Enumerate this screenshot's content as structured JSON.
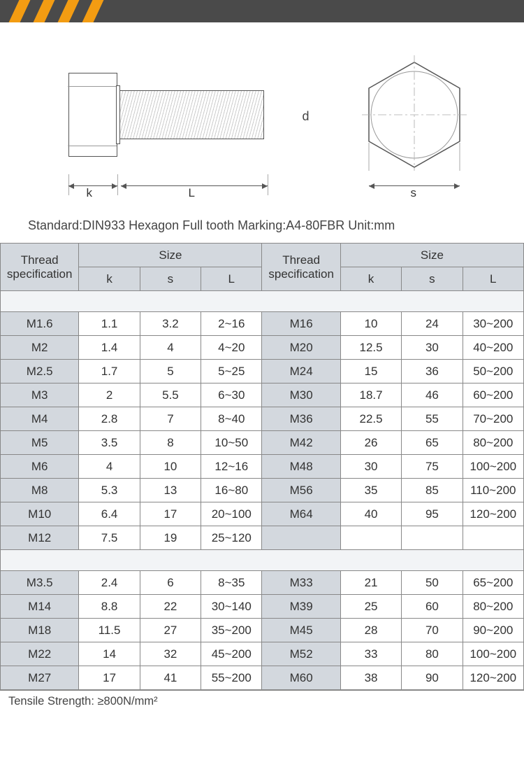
{
  "colors": {
    "topbar": "#4a4a4a",
    "stripe": "#f39c12",
    "header_bg": "#d3d8de",
    "gap_bg": "#f2f4f6",
    "border": "#888888",
    "text": "#333333"
  },
  "diagram": {
    "labels": {
      "d": "d",
      "k": "k",
      "L": "L",
      "s": "s"
    }
  },
  "standard_line": "Standard:DIN933  Hexagon Full tooth   Marking:A4-80FBR   Unit:mm",
  "table": {
    "headers": {
      "thread_spec": "Thread specification",
      "size": "Size",
      "k": "k",
      "s": "s",
      "L": "L"
    },
    "block1": [
      {
        "l_spec": "M1.6",
        "l_k": "1.1",
        "l_s": "3.2",
        "l_L": "2~16",
        "r_spec": "M16",
        "r_k": "10",
        "r_s": "24",
        "r_L": "30~200"
      },
      {
        "l_spec": "M2",
        "l_k": "1.4",
        "l_s": "4",
        "l_L": "4~20",
        "r_spec": "M20",
        "r_k": "12.5",
        "r_s": "30",
        "r_L": "40~200"
      },
      {
        "l_spec": "M2.5",
        "l_k": "1.7",
        "l_s": "5",
        "l_L": "5~25",
        "r_spec": "M24",
        "r_k": "15",
        "r_s": "36",
        "r_L": "50~200"
      },
      {
        "l_spec": "M3",
        "l_k": "2",
        "l_s": "5.5",
        "l_L": "6~30",
        "r_spec": "M30",
        "r_k": "18.7",
        "r_s": "46",
        "r_L": "60~200"
      },
      {
        "l_spec": "M4",
        "l_k": "2.8",
        "l_s": "7",
        "l_L": "8~40",
        "r_spec": "M36",
        "r_k": "22.5",
        "r_s": "55",
        "r_L": "70~200"
      },
      {
        "l_spec": "M5",
        "l_k": "3.5",
        "l_s": "8",
        "l_L": "10~50",
        "r_spec": "M42",
        "r_k": "26",
        "r_s": "65",
        "r_L": "80~200"
      },
      {
        "l_spec": "M6",
        "l_k": "4",
        "l_s": "10",
        "l_L": "12~16",
        "r_spec": "M48",
        "r_k": "30",
        "r_s": "75",
        "r_L": "100~200"
      },
      {
        "l_spec": "M8",
        "l_k": "5.3",
        "l_s": "13",
        "l_L": "16~80",
        "r_spec": "M56",
        "r_k": "35",
        "r_s": "85",
        "r_L": "110~200"
      },
      {
        "l_spec": "M10",
        "l_k": "6.4",
        "l_s": "17",
        "l_L": "20~100",
        "r_spec": "M64",
        "r_k": "40",
        "r_s": "95",
        "r_L": "120~200"
      },
      {
        "l_spec": "M12",
        "l_k": "7.5",
        "l_s": "19",
        "l_L": "25~120",
        "r_spec": "",
        "r_k": "",
        "r_s": "",
        "r_L": ""
      }
    ],
    "block2": [
      {
        "l_spec": "M3.5",
        "l_k": "2.4",
        "l_s": "6",
        "l_L": "8~35",
        "r_spec": "M33",
        "r_k": "21",
        "r_s": "50",
        "r_L": "65~200"
      },
      {
        "l_spec": "M14",
        "l_k": "8.8",
        "l_s": "22",
        "l_L": "30~140",
        "r_spec": "M39",
        "r_k": "25",
        "r_s": "60",
        "r_L": "80~200"
      },
      {
        "l_spec": "M18",
        "l_k": "11.5",
        "l_s": "27",
        "l_L": "35~200",
        "r_spec": "M45",
        "r_k": "28",
        "r_s": "70",
        "r_L": "90~200"
      },
      {
        "l_spec": "M22",
        "l_k": "14",
        "l_s": "32",
        "l_L": "45~200",
        "r_spec": "M52",
        "r_k": "33",
        "r_s": "80",
        "r_L": "100~200"
      },
      {
        "l_spec": "M27",
        "l_k": "17",
        "l_s": "41",
        "l_L": "55~200",
        "r_spec": "M60",
        "r_k": "38",
        "r_s": "90",
        "r_L": "120~200"
      }
    ]
  },
  "footnote": "Tensile Strength: ≥800N/mm²"
}
